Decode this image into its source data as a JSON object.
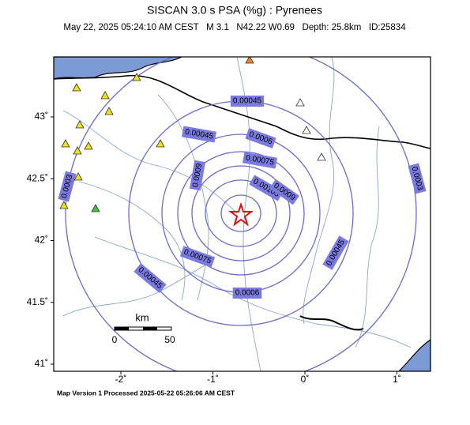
{
  "map": {
    "title": "SISCAN 3.0 s PSA (%g) : Pyrenees",
    "subtitle": "May 22, 2025 05:24:10 AM CEST   M 3.1   N42.22 W0.69   Depth: 25.8km   ID:25834",
    "lat_ticks": [
      {
        "value": 43,
        "label": "43˚"
      },
      {
        "value": 42.5,
        "label": "42.5˚"
      },
      {
        "value": 42,
        "label": "42˚"
      },
      {
        "value": 41.5,
        "label": "41.5˚"
      },
      {
        "value": 41,
        "label": "41˚"
      }
    ],
    "lon_ticks": [
      {
        "value": -2,
        "label": "-2˚"
      },
      {
        "value": -1,
        "label": "-1˚"
      },
      {
        "value": 0,
        "label": "0˚"
      },
      {
        "value": 1,
        "label": "1˚"
      }
    ],
    "contour_labels": [
      "0.00045",
      "0.00045",
      "0.0006",
      "0.00075",
      "0.0009",
      "0.00105",
      "0.0009",
      "0.00075",
      "0.00045",
      "0.0006",
      "0.00045",
      "0.0003",
      "0.0003"
    ],
    "scale_bar": {
      "unit": "km",
      "start": "0",
      "end": "50"
    },
    "footer": "Map Version 1 Processed 2025-05-22 05:26:06 AM CEST"
  }
}
